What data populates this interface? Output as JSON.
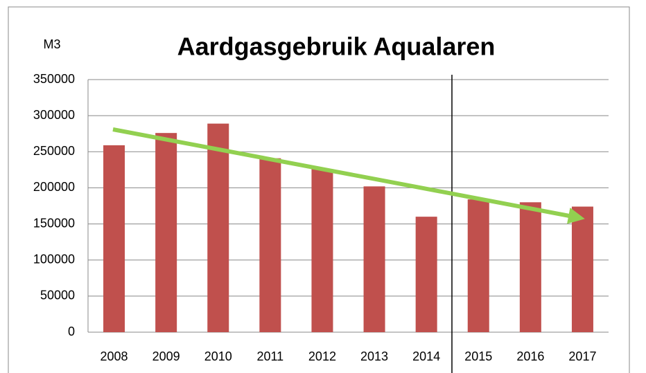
{
  "chart_data": {
    "type": "bar",
    "title": "Aardgasgebruik Aqualaren",
    "y_label": "M3",
    "categories": [
      "2008",
      "2009",
      "2010",
      "2011",
      "2012",
      "2013",
      "2014",
      "2015",
      "2016",
      "2017"
    ],
    "values": [
      259000,
      276000,
      289000,
      241000,
      226000,
      202000,
      160000,
      184000,
      180000,
      174000
    ],
    "color": "#c0504d",
    "ylim": [
      0,
      350000
    ],
    "yticks": [
      0,
      50000,
      100000,
      150000,
      200000,
      250000,
      300000,
      350000
    ],
    "grid": true
  }
}
